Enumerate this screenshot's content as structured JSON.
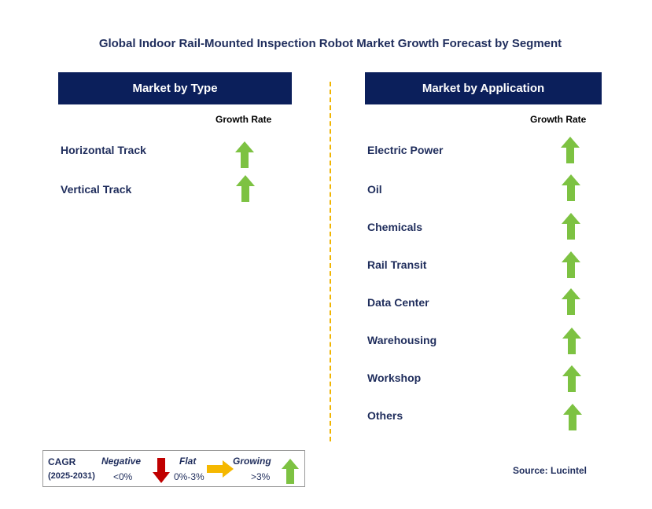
{
  "title": "Global Indoor Rail-Mounted Inspection Robot Market Growth Forecast by Segment",
  "chart_data": {
    "type": "table",
    "panels": [
      {
        "header": "Market by Type",
        "column_header": "Growth Rate",
        "rows": [
          {
            "label": "Horizontal Track",
            "trend": "growing"
          },
          {
            "label": "Vertical Track",
            "trend": "growing"
          }
        ]
      },
      {
        "header": "Market by Application",
        "column_header": "Growth Rate",
        "rows": [
          {
            "label": "Electric Power",
            "trend": "growing"
          },
          {
            "label": "Oil",
            "trend": "growing"
          },
          {
            "label": "Chemicals",
            "trend": "growing"
          },
          {
            "label": "Rail Transit",
            "trend": "growing"
          },
          {
            "label": "Data Center",
            "trend": "growing"
          },
          {
            "label": "Warehousing",
            "trend": "growing"
          },
          {
            "label": "Workshop",
            "trend": "growing"
          },
          {
            "label": "Others",
            "trend": "growing"
          }
        ]
      }
    ]
  },
  "legend": {
    "cagr_label": "CAGR",
    "period": "(2025-2031)",
    "negative_label": "Negative",
    "negative_range": "<0%",
    "flat_label": "Flat",
    "flat_range": "0%-3%",
    "growing_label": "Growing",
    "growing_range": ">3%"
  },
  "source": "Source: Lucintel",
  "colors": {
    "header_bg": "#0b1f5b",
    "text": "#1f2d5c",
    "growing": "#7dc242",
    "negative": "#c00000",
    "flat": "#f5b800",
    "divider": "#f0b400"
  }
}
